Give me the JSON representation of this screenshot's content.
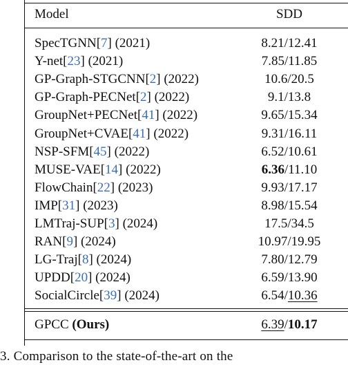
{
  "header": {
    "model": "Model",
    "metric": "SDD"
  },
  "rows": [
    {
      "name": "SpecTGNN",
      "ref": "7",
      "year": "(2021)",
      "ade": "8.21",
      "fde": "12.41"
    },
    {
      "name": "Y-net",
      "ref": "23",
      "year": "(2021)",
      "ade": "7.85",
      "fde": "11.85"
    },
    {
      "name": "GP-Graph-STGCNN",
      "ref": "2",
      "year": "(2022)",
      "ade": "10.6",
      "fde": "20.5"
    },
    {
      "name": "GP-Graph-PECNet",
      "ref": "2",
      "year": "(2022)",
      "ade": "9.1",
      "fde": "13.8"
    },
    {
      "name": "GroupNet+PECNet",
      "ref": "41",
      "year": "(2022)",
      "ade": "9.65",
      "fde": "15.34"
    },
    {
      "name": "GroupNet+CVAE",
      "ref": "41",
      "year": "(2022)",
      "ade": "9.31",
      "fde": "16.11"
    },
    {
      "name": "NSP-SFM",
      "ref": "45",
      "year": "(2022)",
      "ade": "6.52",
      "fde": "10.61"
    },
    {
      "name": "MUSE-VAE",
      "ref": "14",
      "year": "(2022)",
      "ade": "6.36",
      "fde": "11.10"
    },
    {
      "name": "FlowChain",
      "ref": "22",
      "year": "(2023)",
      "ade": "9.93",
      "fde": "17.17"
    },
    {
      "name": "IMP",
      "ref": "31",
      "year": "(2023)",
      "ade": "8.98",
      "fde": "15.54"
    },
    {
      "name": "LMTraj-SUP",
      "ref": "3",
      "year": "(2024)",
      "ade": "17.5",
      "fde": "34.5"
    },
    {
      "name": "RAN",
      "ref": "9",
      "year": "(2024)",
      "ade": "10.97",
      "fde": "19.95"
    },
    {
      "name": "LG-Traj",
      "ref": "8",
      "year": "(2024)",
      "ade": "7.80",
      "fde": "12.79"
    },
    {
      "name": "UPDD",
      "ref": "20",
      "year": "(2024)",
      "ade": "6.59",
      "fde": "13.90"
    },
    {
      "name": "SocialCircle",
      "ref": "39",
      "year": "(2024)",
      "ade": "6.54",
      "fde": "10.36"
    }
  ],
  "ours": {
    "name": "GPCC",
    "tag": "(Ours)",
    "ade": "6.39",
    "fde": "10.17"
  },
  "caption": "3.    Comparison    to    the    state-of-the-art    on    the"
}
